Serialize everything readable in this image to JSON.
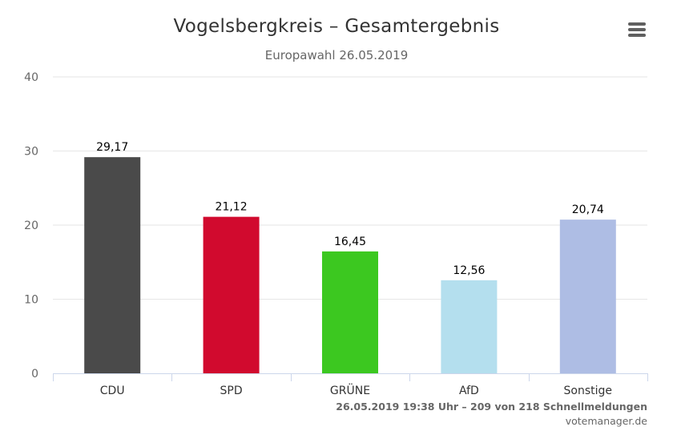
{
  "header": {
    "title": "Vogelsbergkreis – Gesamtergebnis",
    "subtitle": "Europawahl 26.05.2019"
  },
  "footer": {
    "status": "26.05.2019 19:38 Uhr – 209 von 218 Schnellmeldungen",
    "source": "votemanager.de"
  },
  "menu": {
    "icon": "hamburger-menu-icon"
  },
  "chart_data": {
    "type": "bar",
    "title": "Vogelsbergkreis – Gesamtergebnis",
    "subtitle": "Europawahl 26.05.2019",
    "categories": [
      "CDU",
      "SPD",
      "GRÜNE",
      "AfD",
      "Sonstige"
    ],
    "values": [
      29.17,
      21.12,
      16.45,
      12.56,
      20.74
    ],
    "value_labels": [
      "29,17",
      "21,12",
      "16,45",
      "12,56",
      "20,74"
    ],
    "colors": [
      "#4a4a4a",
      "#d10a2e",
      "#3cc820",
      "#b4dfee",
      "#aebde4"
    ],
    "ylim": [
      0,
      40
    ],
    "yticks": [
      0,
      10,
      20,
      30,
      40
    ],
    "grid": true,
    "legend": "none"
  }
}
